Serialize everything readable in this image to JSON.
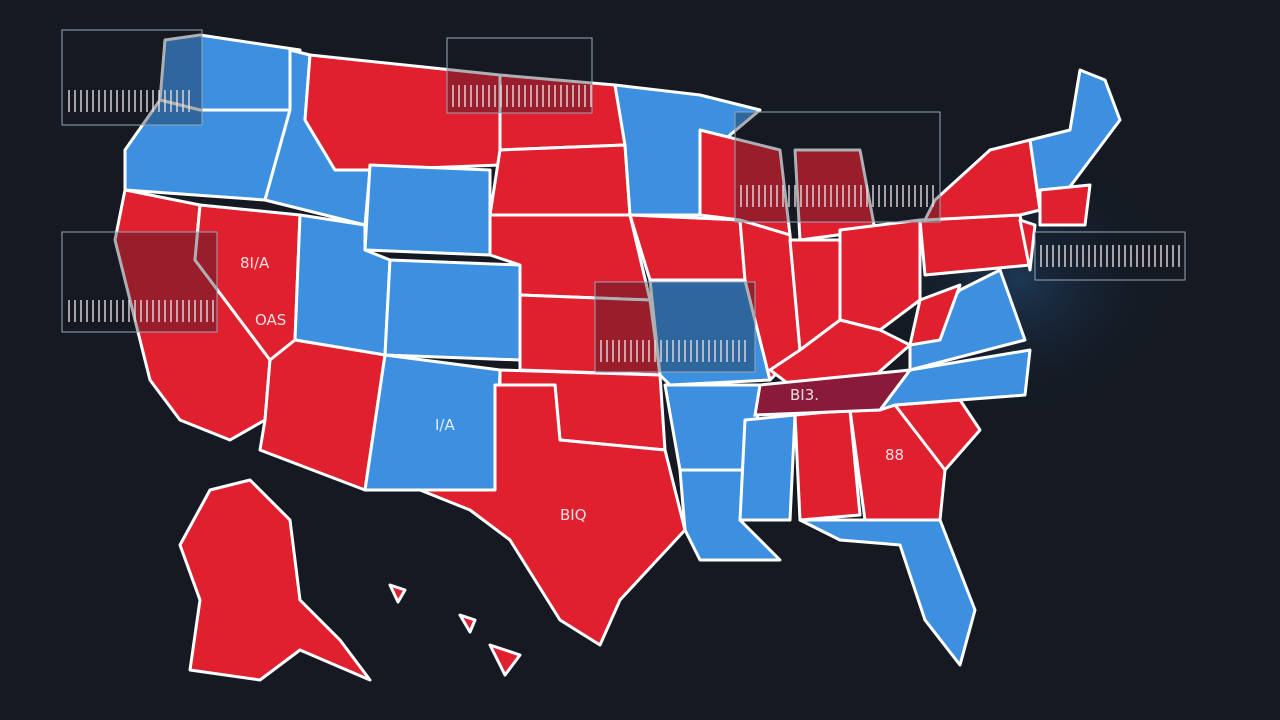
{
  "map": {
    "labels": [
      "8I/A",
      "BI3.",
      "88",
      "OAS",
      "I/A",
      "BIQ"
    ]
  }
}
